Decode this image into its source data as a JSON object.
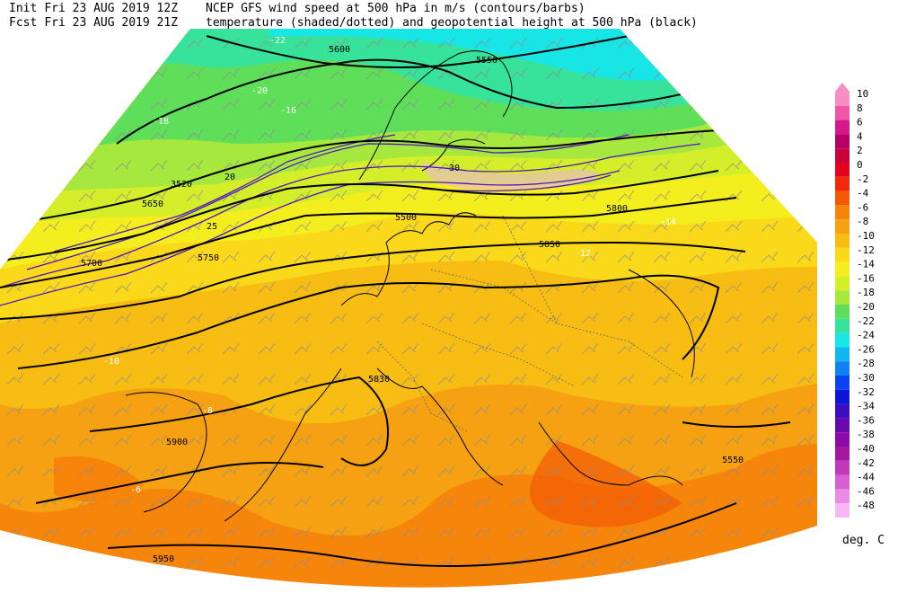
{
  "header": {
    "init_prefix": "Init",
    "init_time": "Fri 23 AUG 2019 12Z",
    "fcst_prefix": "Fcst",
    "fcst_time": "Fri 23 AUG 2019 21Z",
    "title_line1": "NCEP GFS wind speed at 500 hPa in m/s (contours/barbs)",
    "title_line2": "temperature (shaded/dotted) and geopotential height at 500 hPa (black)"
  },
  "colorbar": {
    "unit": "deg. C",
    "levels": [
      {
        "label": "10",
        "color": "#f58fc1"
      },
      {
        "label": "8",
        "color": "#ef55a8"
      },
      {
        "label": "6",
        "color": "#d6198a"
      },
      {
        "label": "4",
        "color": "#b5006a"
      },
      {
        "label": "2",
        "color": "#c8003c"
      },
      {
        "label": "0",
        "color": "#e4001e"
      },
      {
        "label": "-2",
        "color": "#f3290b"
      },
      {
        "label": "-4",
        "color": "#f45a06"
      },
      {
        "label": "-6",
        "color": "#f6840a"
      },
      {
        "label": "-8",
        "color": "#f5a111"
      },
      {
        "label": "-10",
        "color": "#f8bd13"
      },
      {
        "label": "-12",
        "color": "#fad81a"
      },
      {
        "label": "-14",
        "color": "#f5ee1f"
      },
      {
        "label": "-16",
        "color": "#d5ee2a"
      },
      {
        "label": "-18",
        "color": "#a6e83d"
      },
      {
        "label": "-20",
        "color": "#5fdf59"
      },
      {
        "label": "-22",
        "color": "#37e29b"
      },
      {
        "label": "-24",
        "color": "#18e5e5"
      },
      {
        "label": "-26",
        "color": "#14b6f2"
      },
      {
        "label": "-28",
        "color": "#0e82f2"
      },
      {
        "label": "-30",
        "color": "#0844f0"
      },
      {
        "label": "-32",
        "color": "#0a17d6"
      },
      {
        "label": "-34",
        "color": "#3d0ec0"
      },
      {
        "label": "-36",
        "color": "#6a08b0"
      },
      {
        "label": "-38",
        "color": "#8e0aa8"
      },
      {
        "label": "-40",
        "color": "#a6169e"
      },
      {
        "label": "-42",
        "color": "#c138b8"
      },
      {
        "label": "-44",
        "color": "#d65fd2"
      },
      {
        "label": "-46",
        "color": "#e88ae6"
      },
      {
        "label": "-48",
        "color": "#f5b8f4"
      }
    ]
  },
  "map": {
    "height_labels": [
      "5500",
      "5550",
      "5600",
      "5650",
      "5700",
      "5750",
      "5800",
      "5850",
      "5900",
      "5950"
    ],
    "height_contours": [
      {
        "label": "5550",
        "color": "#000000"
      },
      {
        "label": "5600",
        "color": "#000000"
      },
      {
        "label": "5650",
        "color": "#000000"
      },
      {
        "label": "5700",
        "color": "#000000"
      },
      {
        "label": "5750",
        "color": "#000000"
      },
      {
        "label": "5800",
        "color": "#000000"
      },
      {
        "label": "5850",
        "color": "#000000"
      },
      {
        "label": "5900",
        "color": "#000000"
      },
      {
        "label": "5950",
        "color": "#000000"
      }
    ],
    "text_labels": [
      {
        "t": "5600"
      },
      {
        "t": "5550"
      },
      {
        "t": "-22"
      },
      {
        "t": "-20"
      },
      {
        "t": "-18"
      },
      {
        "t": "-16"
      },
      {
        "t": "3520"
      },
      {
        "t": "5650"
      },
      {
        "t": "5750"
      },
      {
        "t": "5700"
      },
      {
        "t": "20"
      },
      {
        "t": "25"
      },
      {
        "t": "30"
      },
      {
        "t": "5500"
      },
      {
        "t": "5800"
      },
      {
        "t": "5850"
      },
      {
        "t": "-14"
      },
      {
        "t": "-12"
      },
      {
        "t": "-10"
      },
      {
        "t": "-8"
      },
      {
        "t": "-6"
      },
      {
        "t": "5900"
      },
      {
        "t": "5950"
      },
      {
        "t": "5830"
      },
      {
        "t": "5550"
      }
    ]
  }
}
